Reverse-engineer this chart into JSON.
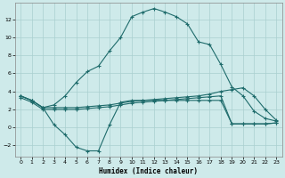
{
  "xlabel": "Humidex (Indice chaleur)",
  "bg_color": "#ceeaea",
  "grid_color": "#aacfcf",
  "line_color": "#1e6b6b",
  "xlim": [
    -0.5,
    23.5
  ],
  "ylim": [
    -3.2,
    13.8
  ],
  "xticks": [
    0,
    1,
    2,
    3,
    4,
    5,
    6,
    7,
    8,
    9,
    10,
    11,
    12,
    13,
    14,
    15,
    16,
    17,
    18,
    19,
    20,
    21,
    22,
    23
  ],
  "yticks": [
    -2,
    0,
    2,
    4,
    6,
    8,
    10,
    12
  ],
  "line_peak_x": [
    0,
    1,
    2,
    3,
    4,
    5,
    6,
    7,
    8,
    9,
    10,
    11,
    12,
    13,
    14,
    15,
    16,
    17,
    18,
    19,
    20,
    21,
    22,
    23
  ],
  "line_peak_y": [
    3.5,
    3.0,
    2.2,
    2.5,
    3.5,
    5.0,
    6.2,
    6.8,
    8.5,
    10.0,
    12.3,
    12.8,
    13.2,
    12.8,
    12.3,
    11.5,
    9.5,
    9.2,
    7.0,
    4.5,
    3.5,
    1.8,
    1.0,
    0.7
  ],
  "line_upper_x": [
    0,
    1,
    2,
    3,
    4,
    5,
    6,
    7,
    8,
    9,
    10,
    11,
    12,
    13,
    14,
    15,
    16,
    17,
    18,
    19,
    20,
    21,
    22,
    23
  ],
  "line_upper_y": [
    3.5,
    3.0,
    2.2,
    2.2,
    2.2,
    2.2,
    2.3,
    2.4,
    2.5,
    2.7,
    2.9,
    3.0,
    3.1,
    3.2,
    3.3,
    3.4,
    3.5,
    3.7,
    4.0,
    4.2,
    4.4,
    3.5,
    2.0,
    0.8
  ],
  "line_lower_x": [
    0,
    1,
    2,
    3,
    4,
    5,
    6,
    7,
    8,
    9,
    10,
    11,
    12,
    13,
    14,
    15,
    16,
    17,
    18,
    19,
    20,
    21,
    22,
    23
  ],
  "line_lower_y": [
    3.3,
    2.8,
    2.0,
    2.0,
    2.0,
    2.0,
    2.1,
    2.2,
    2.3,
    2.5,
    2.7,
    2.8,
    2.9,
    3.0,
    3.1,
    3.2,
    3.3,
    3.4,
    3.5,
    0.4,
    0.4,
    0.4,
    0.4,
    0.5
  ],
  "line_dip_x": [
    0,
    1,
    2,
    3,
    4,
    5,
    6,
    7,
    8,
    9,
    10,
    11,
    12,
    13,
    14,
    15,
    16,
    17,
    18,
    19,
    20,
    21,
    22,
    23
  ],
  "line_dip_y": [
    3.5,
    3.0,
    2.2,
    0.3,
    -0.8,
    -2.2,
    -2.6,
    -2.6,
    0.3,
    2.8,
    3.0,
    3.0,
    3.0,
    3.0,
    3.0,
    3.0,
    3.0,
    3.0,
    3.0,
    0.4,
    0.4,
    0.4,
    0.4,
    0.5
  ]
}
